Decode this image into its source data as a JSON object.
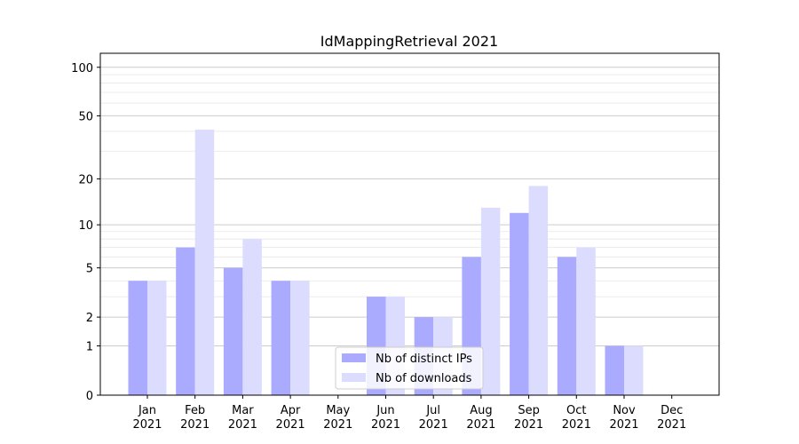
{
  "chart_data": {
    "type": "bar",
    "title": "IdMappingRetrieval 2021",
    "xlabel": "",
    "ylabel": "",
    "yscale": "log(1+y)",
    "ylim": [
      0,
      100
    ],
    "yticks": [
      0,
      1,
      2,
      5,
      10,
      20,
      50,
      100
    ],
    "grid": "horizontal",
    "legend_position": "bottom-center",
    "categories": [
      "Jan\n2021",
      "Feb\n2021",
      "Mar\n2021",
      "Apr\n2021",
      "May\n2021",
      "Jun\n2021",
      "Jul\n2021",
      "Aug\n2021",
      "Sep\n2021",
      "Oct\n2021",
      "Nov\n2021",
      "Dec\n2021"
    ],
    "series": [
      {
        "name": "Nb of distinct IPs",
        "color": "#aaaaff",
        "values": [
          4,
          7,
          5,
          4,
          0,
          3,
          2,
          6,
          12,
          6,
          1,
          0
        ]
      },
      {
        "name": "Nb of downloads",
        "color": "#dcdcff",
        "values": [
          4,
          41,
          8,
          4,
          0,
          3,
          2,
          13,
          18,
          7,
          1,
          0
        ]
      }
    ]
  }
}
